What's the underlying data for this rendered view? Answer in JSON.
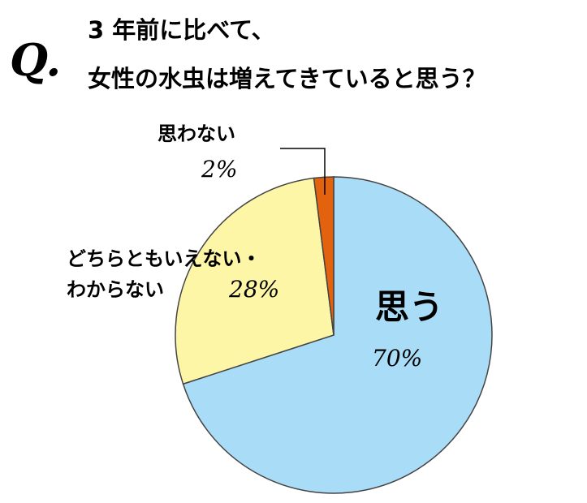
{
  "q_mark": "Q.",
  "chart_data": {
    "type": "pie",
    "title_lines": [
      "3 年前に比べて、",
      "女性の水虫は増えてきていると思う？"
    ],
    "categories": [
      "思う",
      "どちらともいえない・\nわからない",
      "思わない"
    ],
    "values": [
      70,
      28,
      2
    ],
    "value_labels": [
      "70%",
      "28%",
      "2%"
    ],
    "colors": [
      "#a9dcf6",
      "#fdf6a6",
      "#e2620e"
    ]
  }
}
